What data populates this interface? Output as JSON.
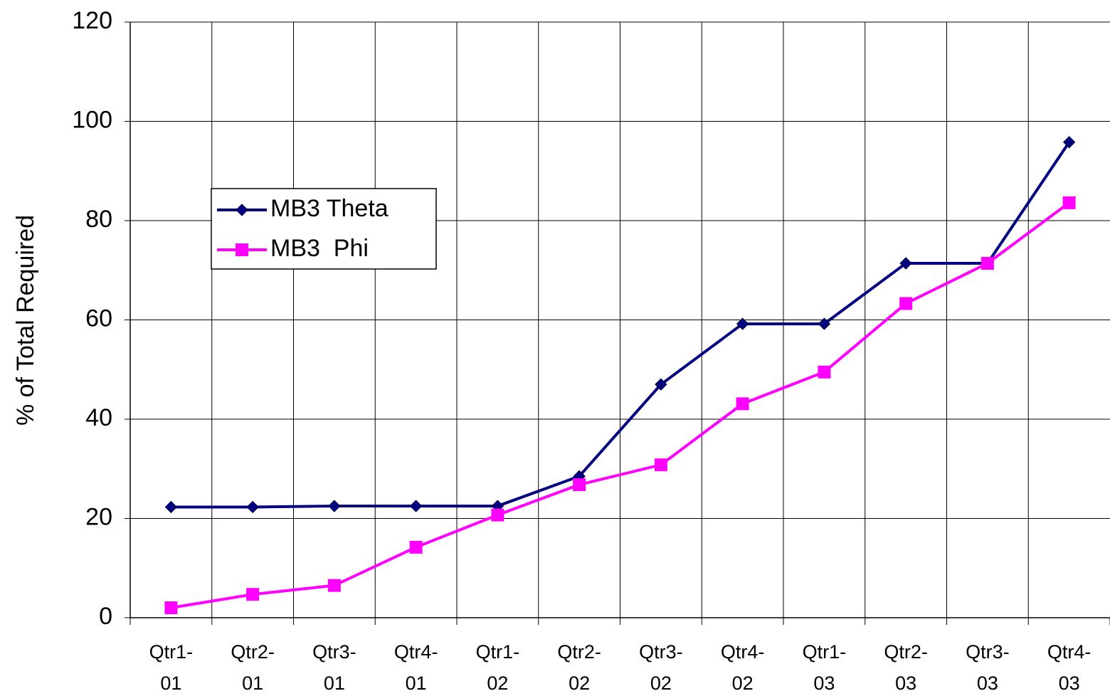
{
  "chart_data": {
    "type": "line",
    "y_label": "% of Total Required",
    "categories": [
      "Qtr1-01",
      "Qtr2-01",
      "Qtr3-01",
      "Qtr4-01",
      "Qtr1-02",
      "Qtr2-02",
      "Qtr3-02",
      "Qtr4-02",
      "Qtr1-03",
      "Qtr2-03",
      "Qtr3-03",
      "Qtr4-03"
    ],
    "series": [
      {
        "name": "MB3 Theta",
        "color": "#000080",
        "marker": "diamond",
        "values": [
          22.3,
          22.3,
          22.5,
          22.5,
          22.5,
          28.5,
          47,
          59.2,
          59.2,
          71.4,
          71.4,
          95.8
        ]
      },
      {
        "name": "MB3  Phi",
        "color": "#ff00ff",
        "marker": "square",
        "values": [
          2,
          4.7,
          6.5,
          14.2,
          20.7,
          26.8,
          30.8,
          43.1,
          49.5,
          63.3,
          71.4,
          83.6
        ]
      }
    ],
    "ylim": [
      0,
      120
    ],
    "yticks": [
      0,
      20,
      40,
      60,
      80,
      100,
      120
    ],
    "grid": true
  }
}
